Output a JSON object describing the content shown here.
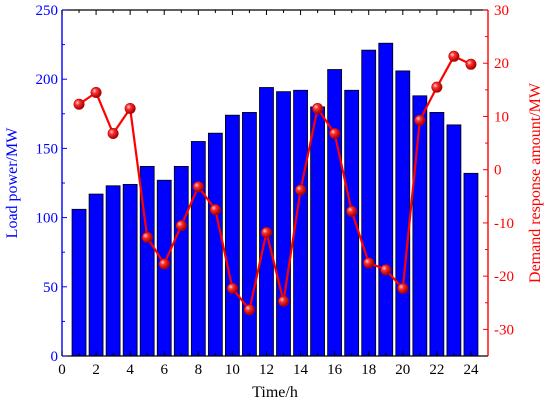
{
  "chart_data": {
    "type": "bar",
    "x": [
      1,
      2,
      3,
      4,
      5,
      6,
      7,
      8,
      9,
      10,
      11,
      12,
      13,
      14,
      15,
      16,
      17,
      18,
      19,
      20,
      21,
      22,
      23,
      24
    ],
    "xlabel": "Time/h",
    "xlim": [
      0,
      25
    ],
    "xticks": [
      0,
      2,
      4,
      6,
      8,
      10,
      12,
      14,
      16,
      18,
      20,
      22,
      24
    ],
    "series": [
      {
        "type": "bar",
        "axis": "left",
        "color": "#0000ff",
        "values": [
          106,
          117,
          123,
          124,
          137,
          127,
          137,
          155,
          161,
          174,
          176,
          194,
          191,
          192,
          180,
          207,
          192,
          221,
          226,
          206,
          188,
          176,
          167,
          132
        ]
      },
      {
        "type": "line",
        "axis": "right",
        "color": "#ff0000",
        "marker": "sphere",
        "values": [
          12.3,
          14.5,
          6.8,
          11.5,
          -12.7,
          -17.7,
          -10.5,
          -3.2,
          -7.5,
          -22.3,
          -26.3,
          -11.8,
          -24.7,
          -3.8,
          11.5,
          6.8,
          -7.8,
          -17.5,
          -18.8,
          -22.3,
          9.3,
          15.5,
          21.3,
          19.8
        ]
      }
    ],
    "ylabel": "Load power/MW",
    "ylim": [
      0,
      250
    ],
    "yticks": [
      0,
      50,
      100,
      150,
      200,
      250
    ],
    "y2label": "Demand response amount/MW",
    "y2lim": [
      -35,
      30
    ],
    "y2ticks": [
      -30,
      -20,
      -10,
      0,
      10,
      20,
      30
    ],
    "colors": {
      "left_axis": "#0000ff",
      "right_axis": "#ff0000",
      "frame": "#000000"
    },
    "grid": false
  }
}
